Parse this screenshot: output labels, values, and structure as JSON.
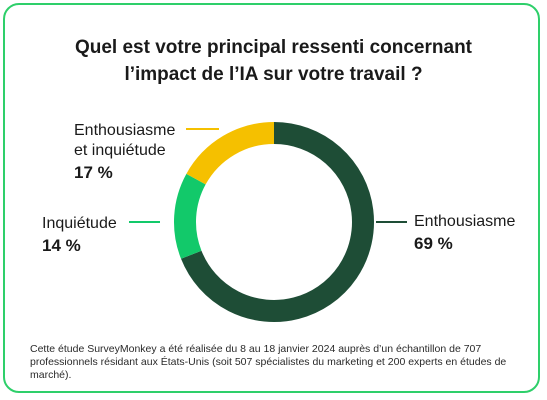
{
  "chart_data": {
    "type": "pie",
    "title_lines": [
      "Quel est votre principal ressenti concernant",
      "l’impact de l’IA sur votre travail ?"
    ],
    "slices": [
      {
        "label_lines": [
          "Enthousiasme"
        ],
        "value": 69,
        "value_label": "69 %",
        "color": "#1e4d36"
      },
      {
        "label_lines": [
          "Inquiétude"
        ],
        "value": 14,
        "value_label": "14 %",
        "color": "#12c96a"
      },
      {
        "label_lines": [
          "Enthousiasme",
          "et inquiétude"
        ],
        "value": 17,
        "value_label": "17 %",
        "color": "#f5c000"
      }
    ]
  },
  "footnote": "Cette étude SurveyMonkey a été réalisée du 8 au 18 janvier 2024 auprès d’un échantillon de 707 professionnels résidant aux États-Unis (soit 507 spécialistes du marketing et 200 experts en études de marché)."
}
